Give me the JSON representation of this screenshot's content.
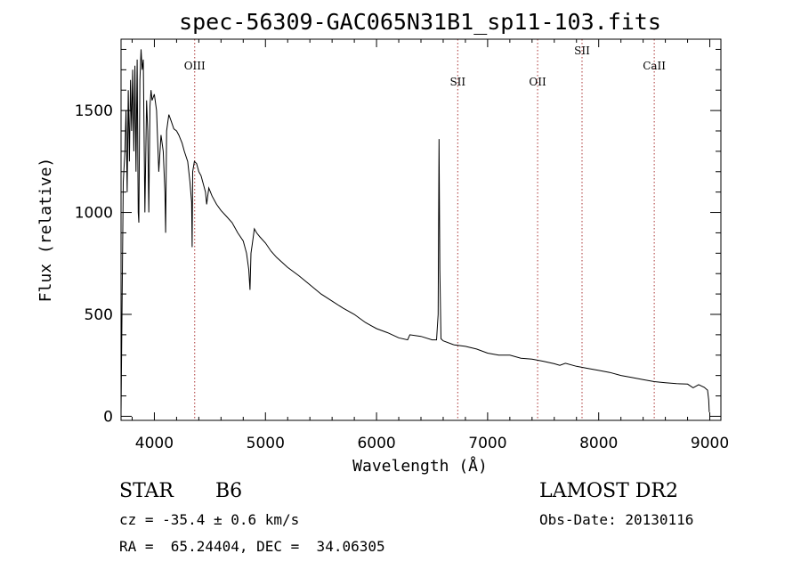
{
  "chart_data": {
    "type": "line",
    "title": "spec-56309-GAC065N31B1_sp11-103.fits",
    "xlabel": "Wavelength (Å)",
    "ylabel": "Flux (relative)",
    "xlim": [
      3700,
      9100
    ],
    "ylim": [
      -20,
      1850
    ],
    "xticks": [
      4000,
      5000,
      6000,
      7000,
      8000,
      9000
    ],
    "yticks": [
      0,
      500,
      1000,
      1500
    ],
    "grid": false,
    "series": [
      {
        "x": [
          3700,
          3720,
          3735,
          3745,
          3755,
          3765,
          3775,
          3785,
          3795,
          3805,
          3815,
          3825,
          3835,
          3845,
          3855,
          3860,
          3870,
          3880,
          3890,
          3900,
          3915,
          3930,
          3940,
          3950,
          3960,
          3970,
          3980,
          4000,
          4020,
          4040,
          4060,
          4080,
          4095,
          4101,
          4110,
          4130,
          4150,
          4175,
          4200,
          4220,
          4250,
          4270,
          4300,
          4320,
          4335,
          4340,
          4345,
          4360,
          4380,
          4400,
          4420,
          4440,
          4460,
          4471,
          4490,
          4520,
          4560,
          4600,
          4650,
          4700,
          4750,
          4800,
          4830,
          4850,
          4861,
          4870,
          4880,
          4900,
          4920,
          4950,
          5000,
          5050,
          5100,
          5200,
          5300,
          5400,
          5500,
          5600,
          5700,
          5800,
          5850,
          5900,
          5950,
          6000,
          6100,
          6200,
          6280,
          6300,
          6400,
          6500,
          6540,
          6555,
          6563,
          6570,
          6580,
          6600,
          6700,
          6800,
          6900,
          7000,
          7100,
          7200,
          7300,
          7400,
          7500,
          7600,
          7650,
          7700,
          7800,
          7900,
          8000,
          8100,
          8200,
          8300,
          8400,
          8500,
          8600,
          8700,
          8800,
          8850,
          8900,
          8950,
          8980,
          8990,
          8995
        ],
        "values": [
          20,
          1150,
          1300,
          1500,
          1100,
          1600,
          1250,
          1650,
          1400,
          1700,
          1300,
          1720,
          1200,
          1750,
          1000,
          950,
          1650,
          1800,
          1700,
          1750,
          1000,
          1550,
          1400,
          1000,
          1520,
          1600,
          1550,
          1580,
          1500,
          1200,
          1380,
          1300,
          1100,
          900,
          1400,
          1480,
          1450,
          1410,
          1400,
          1380,
          1340,
          1300,
          1250,
          1150,
          1050,
          830,
          1200,
          1250,
          1240,
          1200,
          1180,
          1140,
          1100,
          1040,
          1120,
          1080,
          1040,
          1010,
          980,
          950,
          900,
          860,
          800,
          720,
          620,
          800,
          840,
          920,
          900,
          880,
          850,
          810,
          780,
          730,
          690,
          645,
          600,
          565,
          530,
          500,
          480,
          460,
          445,
          430,
          410,
          385,
          375,
          400,
          392,
          375,
          375,
          500,
          1360,
          720,
          380,
          370,
          350,
          343,
          330,
          310,
          300,
          300,
          285,
          280,
          270,
          258,
          250,
          260,
          245,
          235,
          225,
          215,
          200,
          190,
          180,
          170,
          165,
          160,
          158,
          140,
          155,
          142,
          128,
          80,
          20
        ]
      }
    ],
    "annotations": [
      {
        "label": "OIII",
        "x": 4363
      },
      {
        "label": "SII",
        "x": 6731
      },
      {
        "label": "OII",
        "x": 7450
      },
      {
        "label": "SII",
        "x": 7850
      },
      {
        "label": "CaII",
        "x": 8500
      }
    ]
  },
  "info": {
    "object_class": "STAR",
    "subclass": "B6",
    "survey": "LAMOST DR2",
    "cz": "cz = -35.4 ± 0.6 km/s",
    "obs_date": "Obs-Date: 20130116",
    "coords": "RA =  65.24404, DEC =  34.06305"
  }
}
